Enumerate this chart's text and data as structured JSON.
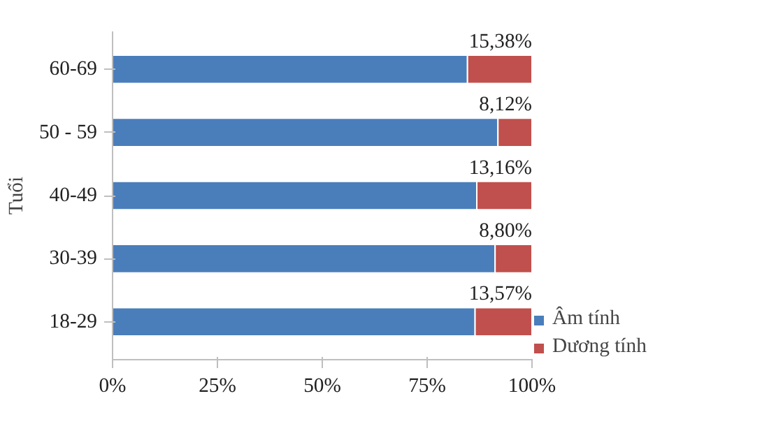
{
  "chart_data": {
    "type": "bar",
    "orientation": "horizontal",
    "stacked": true,
    "ylabel": "Tuổi",
    "categories": [
      "60-69",
      "50 - 59",
      "40-49",
      "30-39",
      "18-29"
    ],
    "series": [
      {
        "name": "Âm tính",
        "color": "#4a7ebb",
        "values": [
          84.62,
          91.88,
          86.84,
          91.2,
          86.43
        ]
      },
      {
        "name": "Dương tính",
        "color": "#c0504d",
        "values": [
          15.38,
          8.12,
          13.16,
          8.8,
          13.57
        ],
        "value_labels": [
          "15,38%",
          "8,12%",
          "13,16%",
          "8,80%",
          "13,57%"
        ]
      }
    ],
    "xlim": [
      0,
      100
    ],
    "xticks": [
      {
        "value": 0,
        "label": "0%"
      },
      {
        "value": 25,
        "label": "25%"
      },
      {
        "value": 50,
        "label": "50%"
      },
      {
        "value": 75,
        "label": "75%"
      },
      {
        "value": 100,
        "label": "100%"
      }
    ],
    "grid": false,
    "legend": "right"
  }
}
